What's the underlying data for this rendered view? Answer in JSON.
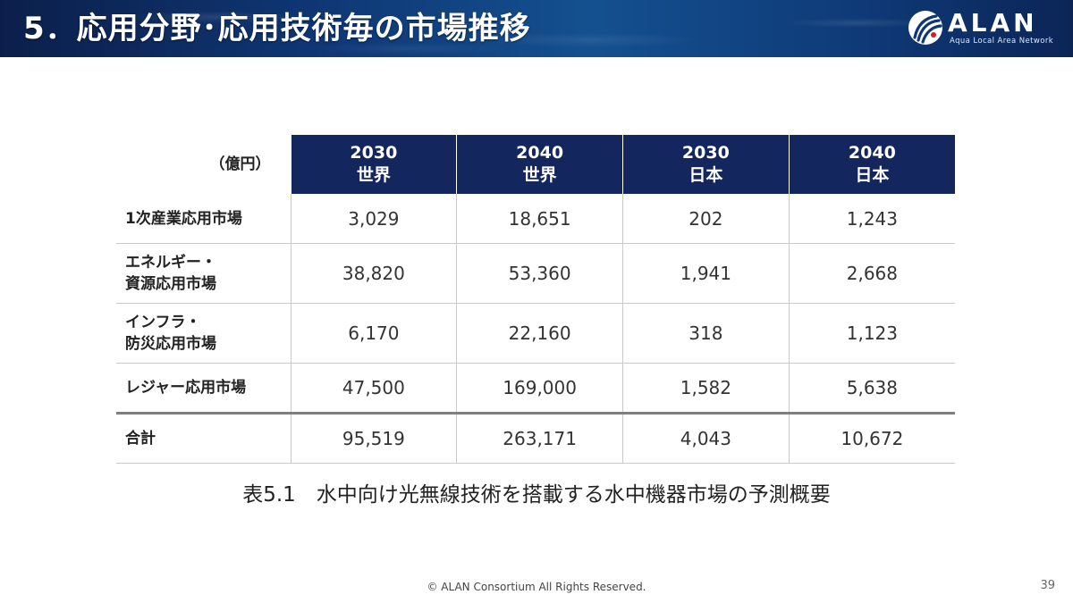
{
  "header": {
    "title": "5．応用分野･応用技術毎の市場推移",
    "logo_text": "ALAN",
    "logo_subtitle": "Aqua Local Area Network",
    "logo_icon": "alan-swirl-icon",
    "accent_color": "#13275e"
  },
  "table": {
    "unit_label": "（億円）",
    "columns": [
      {
        "year": "2030",
        "region": "世界"
      },
      {
        "year": "2040",
        "region": "世界"
      },
      {
        "year": "2030",
        "region": "日本"
      },
      {
        "year": "2040",
        "region": "日本"
      }
    ],
    "rows": [
      {
        "label_line1": "1次産業応用市場",
        "label_line2": "",
        "values": [
          "3,029",
          "18,651",
          "202",
          "1,243"
        ]
      },
      {
        "label_line1": "エネルギー・",
        "label_line2": "資源応用市場",
        "values": [
          "38,820",
          "53,360",
          "1,941",
          "2,668"
        ]
      },
      {
        "label_line1": "インフラ・",
        "label_line2": "防災応用市場",
        "values": [
          "6,170",
          "22,160",
          "318",
          "1,123"
        ]
      },
      {
        "label_line1": "レジャー応用市場",
        "label_line2": "",
        "values": [
          "47,500",
          "169,000",
          "1,582",
          "5,638"
        ]
      }
    ],
    "total": {
      "label": "合計",
      "values": [
        "95,519",
        "263,171",
        "4,043",
        "10,672"
      ]
    }
  },
  "caption": "表5.1　水中向け光無線技術を搭載する水中機器市場の予測概要",
  "footer": {
    "copyright": "© ALAN Consortium All Rights Reserved.",
    "page_number": "39"
  }
}
